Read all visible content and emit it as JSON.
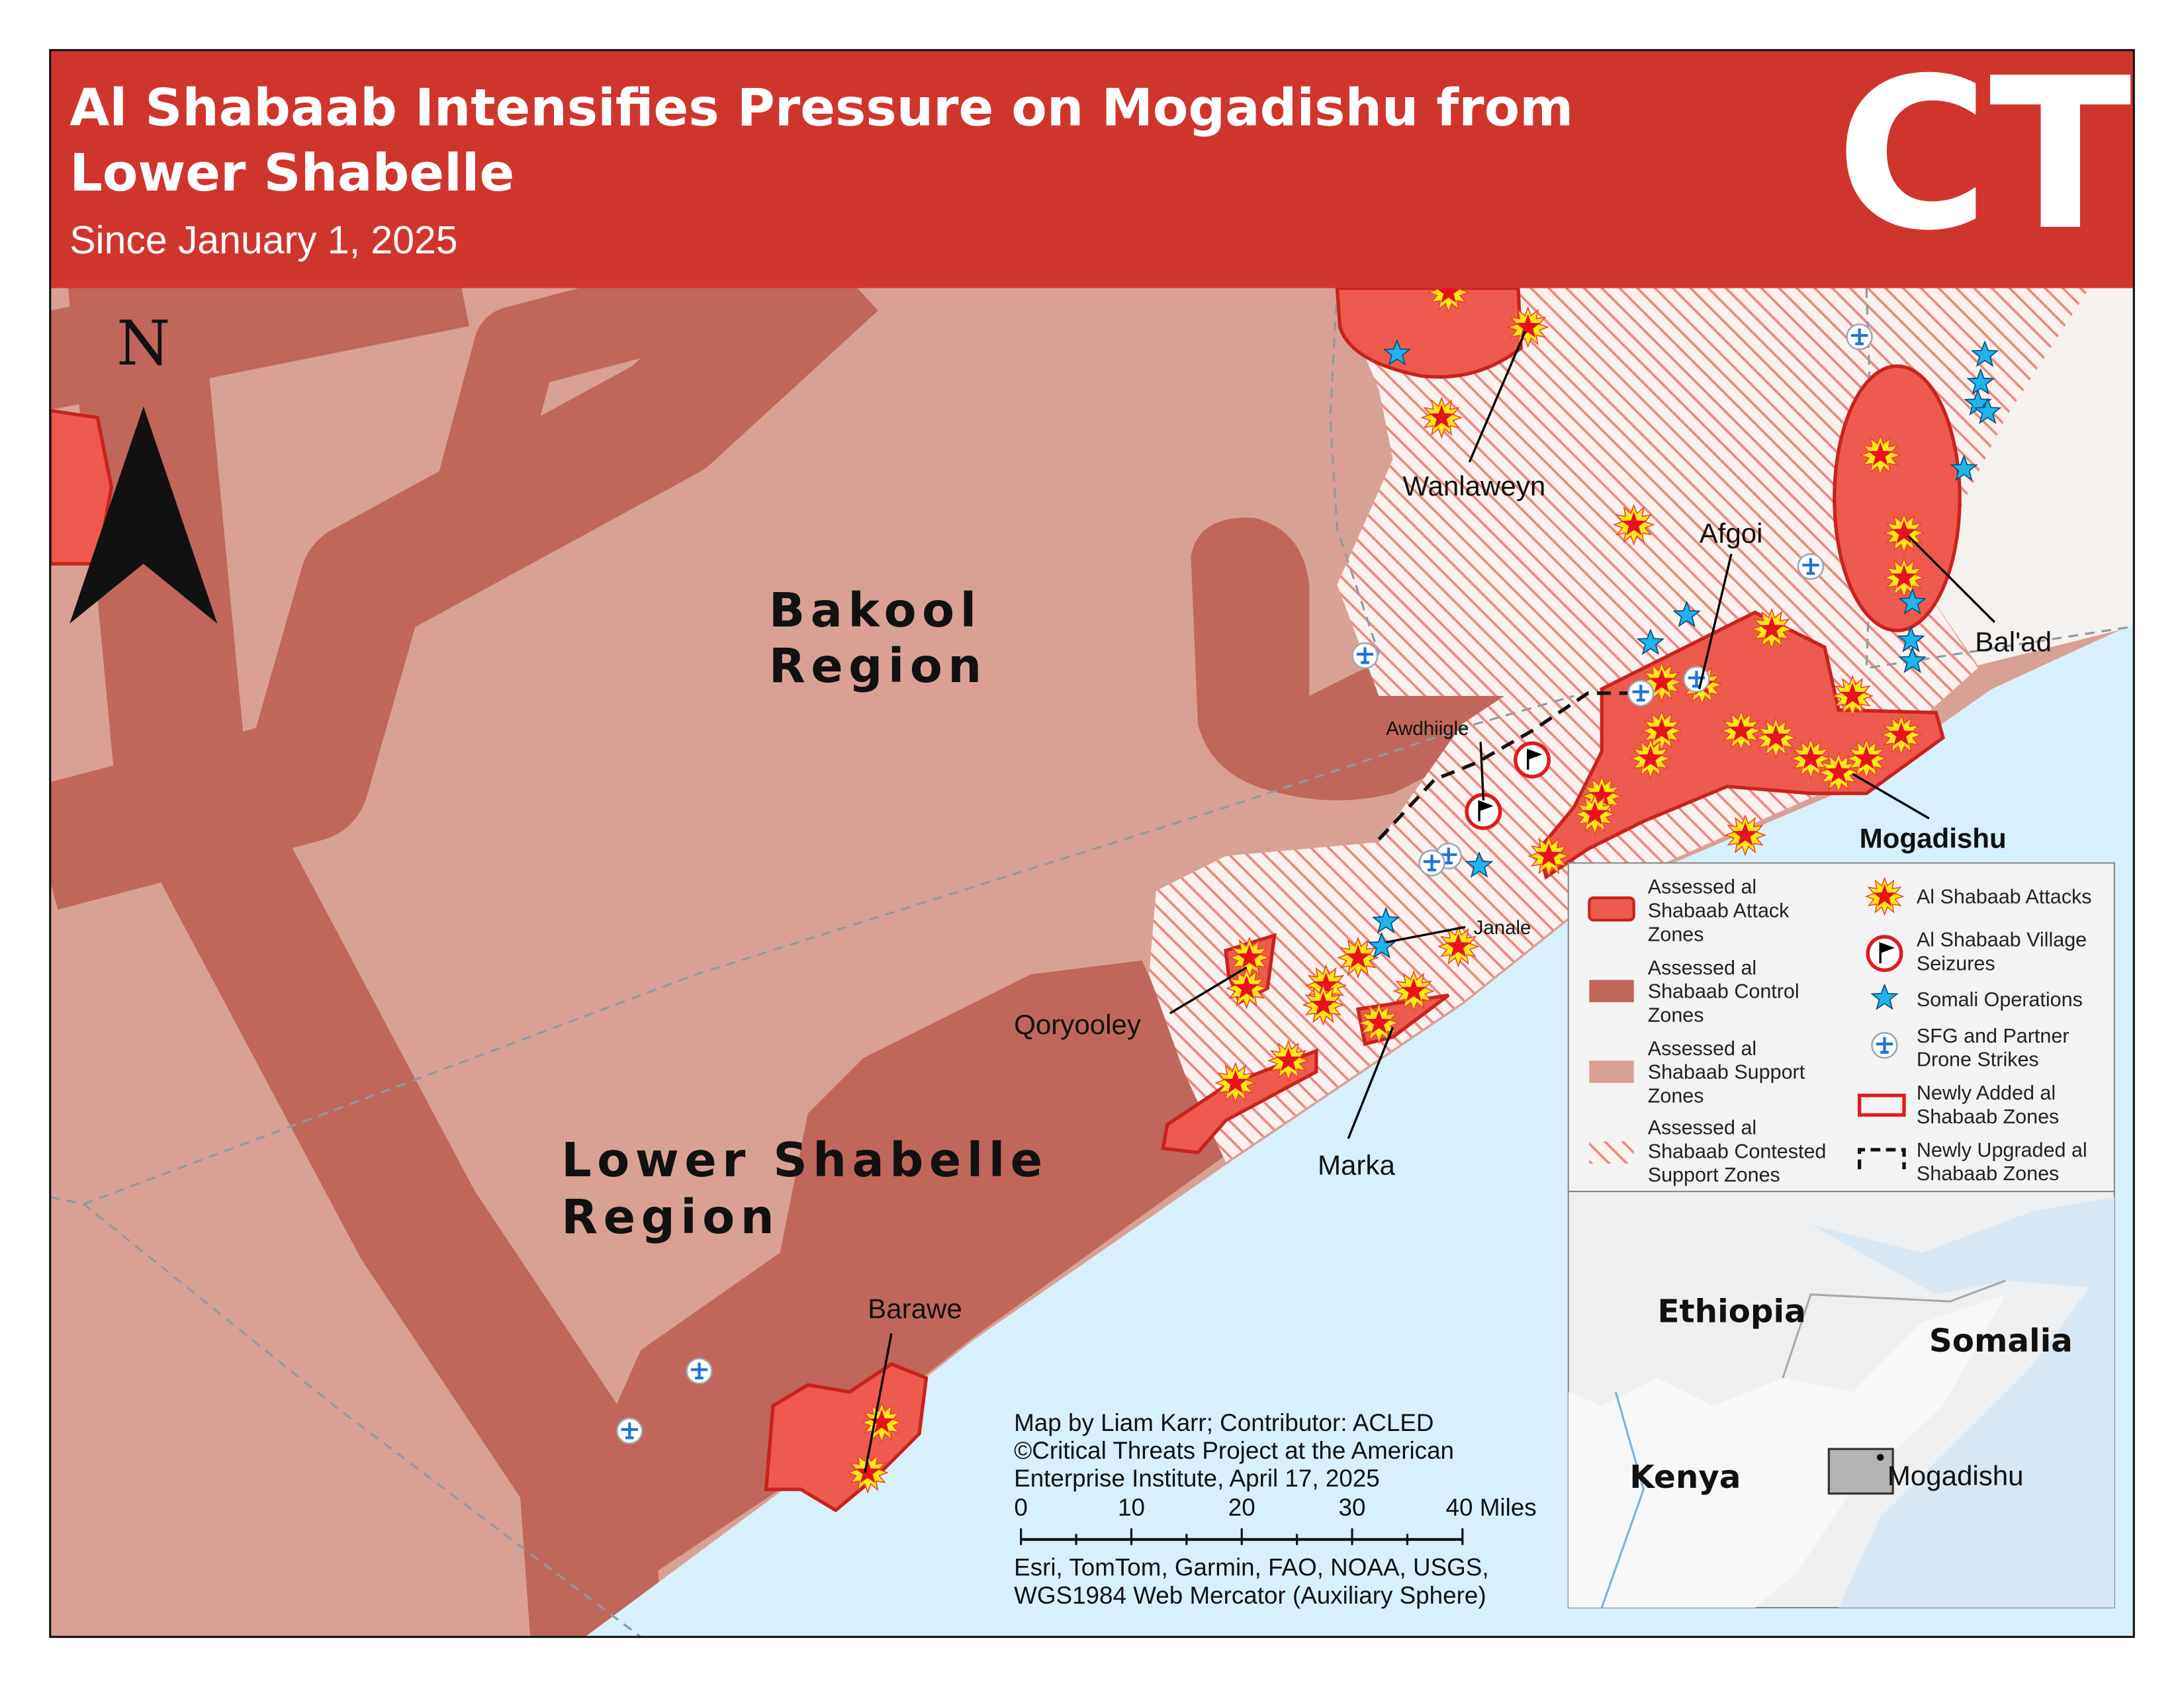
{
  "header": {
    "title_lines": [
      "Al Shabaab Intensifies Pressure on Mogadishu from",
      "Lower Shabelle"
    ],
    "subtitle": "Since January 1, 2025",
    "logo": "CT"
  },
  "map": {
    "north": "N",
    "regions": [
      {
        "lines": [
          "Bakool",
          "Region"
        ]
      },
      {
        "lines": [
          "Lower Shabelle",
          "Region"
        ]
      }
    ],
    "places": [
      "Wanlaweyn",
      "Afgoi",
      "Bal'ad",
      "Awdhiigle",
      "Mogadishu",
      "Janale",
      "Qoryooley",
      "Marka",
      "Barawe"
    ],
    "legend": [
      {
        "lines": [
          "Assessed al",
          "Shabaab Attack",
          "Zones"
        ]
      },
      {
        "lines": [
          "Assessed al",
          "Shabaab Control",
          "Zones"
        ]
      },
      {
        "lines": [
          "Assessed al",
          "Shabaab Support",
          "Zones"
        ]
      },
      {
        "lines": [
          "Assessed al",
          "Shabaab Contested",
          "Support Zones"
        ]
      },
      {
        "lines": [
          "Al Shabaab Attacks"
        ]
      },
      {
        "lines": [
          "Al Shabaab Village",
          "Seizures"
        ]
      },
      {
        "lines": [
          "Somali Operations"
        ]
      },
      {
        "lines": [
          "SFG and Partner",
          "Drone Strikes"
        ]
      },
      {
        "lines": [
          "Newly Added al",
          "Shabaab Zones"
        ]
      },
      {
        "lines": [
          "Newly Upgraded al",
          "Shabaab Zones"
        ]
      }
    ],
    "credits": [
      "Map by Liam Karr; Contributor: ACLED",
      "©Critical Threats Project at the American",
      "Enterprise Institute, April 17, 2025"
    ],
    "scale_labels": [
      "0",
      "10",
      "20",
      "30",
      "40 Miles"
    ],
    "sources": [
      "Esri, TomTom, Garmin, FAO, NOAA, USGS,",
      "WGS1984 Web Mercator (Auxiliary Sphere)"
    ],
    "inset": {
      "countries": [
        "Ethiopia",
        "Somalia",
        "Kenya"
      ],
      "city": "Mogadishu"
    }
  }
}
